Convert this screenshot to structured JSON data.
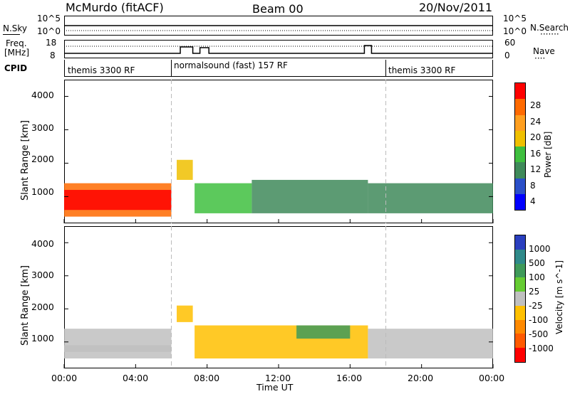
{
  "header": {
    "station": "McMurdo (fitACF)",
    "beam": "Beam 00",
    "date": "20/Nov/2011"
  },
  "side_labels": {
    "nsky": "N.Sky",
    "freq_line1": "Freq.",
    "freq_line2": "[MHz]",
    "cpid": "CPID",
    "nsearch": "N.Search",
    "nsearch_dots": "·······",
    "nave": "Nave",
    "nave_dots": "····"
  },
  "noise_axis": {
    "left_top": "10^5",
    "left_bottom": "10^0",
    "right_top": "10^5",
    "right_bottom": "10^0"
  },
  "freq_axis": {
    "left_top": "18",
    "left_bottom": "8",
    "right_top": "60",
    "right_bottom": "0"
  },
  "cpid_segments": [
    {
      "label": "themis 3300 RF",
      "start": "00:00",
      "end": "06:00"
    },
    {
      "label": "normalsound (fast) 157 RF",
      "start": "06:00",
      "end": "18:00"
    },
    {
      "label": "themis 3300 RF",
      "start": "18:00",
      "end": "24:00"
    }
  ],
  "range_axis": {
    "ylabel": "Slant Range [km]",
    "ticks": [
      "1000",
      "2000",
      "3000",
      "4000"
    ]
  },
  "time_axis": {
    "xlabel": "Time UT",
    "ticks": [
      "00:00",
      "04:00",
      "08:00",
      "12:00",
      "16:00",
      "20:00",
      "00:00"
    ]
  },
  "power_colorbar": {
    "label": "Power [dB]",
    "ticks": [
      "4",
      "8",
      "12",
      "16",
      "20",
      "24",
      "28"
    ],
    "colors": [
      "#0000ff",
      "#2a4fc9",
      "#3f8a5a",
      "#3fbf3f",
      "#f0c000",
      "#ff9f1f",
      "#ff6a00",
      "#ff0000"
    ]
  },
  "velocity_colorbar": {
    "label": "Velocity [m s^-1]",
    "ticks": [
      "1000",
      "500",
      "100",
      "25",
      "-25",
      "-100",
      "-500",
      "-1000"
    ],
    "colors": [
      "#2a3fbf",
      "#2f8a8a",
      "#3f9a5a",
      "#66cc33",
      "#c0c0c0",
      "#ffc000",
      "#ff8a00",
      "#ff5a00",
      "#ff0000"
    ]
  },
  "chart_data": [
    {
      "type": "heatmap",
      "title": "Power",
      "xlabel": "Time UT",
      "ylabel": "Slant Range [km]",
      "xlim": [
        0,
        24
      ],
      "ylim": [
        200,
        4500
      ],
      "colorbar_range": [
        0,
        32
      ],
      "regions": [
        {
          "t0": 0,
          "t1": 6,
          "r0": 400,
          "r1": 1400,
          "value": 24
        },
        {
          "t0": 0,
          "t1": 6,
          "r0": 600,
          "r1": 1200,
          "value": 28
        },
        {
          "t0": 6.3,
          "t1": 7.2,
          "r0": 1500,
          "r1": 2100,
          "value": 18
        },
        {
          "t0": 7.3,
          "t1": 10.5,
          "r0": 500,
          "r1": 1400,
          "value": 14
        },
        {
          "t0": 10.5,
          "t1": 17,
          "r0": 500,
          "r1": 1500,
          "value": 10
        },
        {
          "t0": 17,
          "t1": 24,
          "r0": 500,
          "r1": 1400,
          "value": 8
        }
      ]
    },
    {
      "type": "heatmap",
      "title": "Velocity",
      "xlabel": "Time UT",
      "ylabel": "Slant Range [km]",
      "xlim": [
        0,
        24
      ],
      "ylim": [
        200,
        4500
      ],
      "colorbar_range": [
        -1000,
        1000
      ],
      "regions": [
        {
          "t0": 0,
          "t1": 6,
          "r0": 700,
          "r1": 1400,
          "value": -60
        },
        {
          "t0": 0,
          "t1": 6,
          "r0": 500,
          "r1": 900,
          "value": 80
        },
        {
          "t0": 6.3,
          "t1": 7.2,
          "r0": 1600,
          "r1": 2100,
          "value": -150
        },
        {
          "t0": 7.3,
          "t1": 17,
          "r0": 500,
          "r1": 1500,
          "value": -200
        },
        {
          "t0": 13,
          "t1": 16,
          "r0": 1100,
          "r1": 1500,
          "value": 400
        },
        {
          "t0": 17,
          "t1": 24,
          "r0": 500,
          "r1": 1400,
          "value": 60
        }
      ]
    }
  ]
}
